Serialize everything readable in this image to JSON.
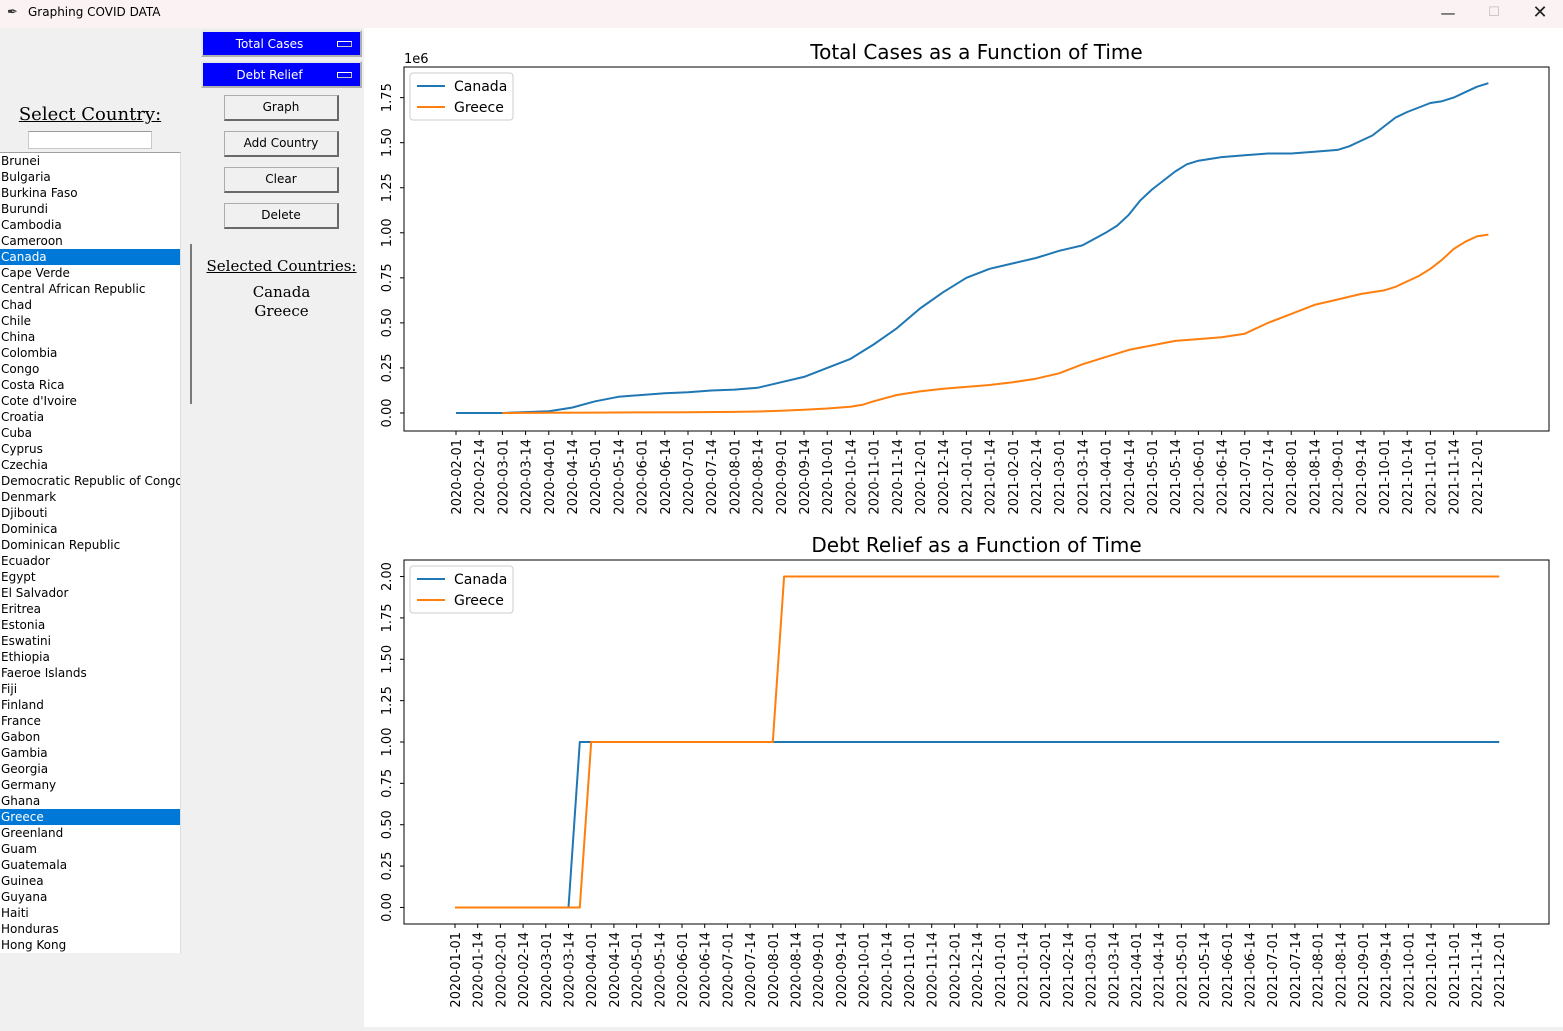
{
  "window": {
    "title": "Graphing COVID DATA",
    "min_glyph": "—",
    "max_glyph": "☐",
    "close_glyph": "✕"
  },
  "controls": {
    "metric1": "Total Cases",
    "metric2": "Debt Relief",
    "graph_label": "Graph",
    "add_label": "Add Country",
    "clear_label": "Clear",
    "delete_label": "Delete"
  },
  "left": {
    "select_label": "Select Country:",
    "search_value": "",
    "countries": [
      "Brunei",
      "Bulgaria",
      "Burkina Faso",
      "Burundi",
      "Cambodia",
      "Cameroon",
      "Canada",
      "Cape Verde",
      "Central African Republic",
      "Chad",
      "Chile",
      "China",
      "Colombia",
      "Congo",
      "Costa Rica",
      "Cote d'Ivoire",
      "Croatia",
      "Cuba",
      "Cyprus",
      "Czechia",
      "Democratic Republic of Congo",
      "Denmark",
      "Djibouti",
      "Dominica",
      "Dominican Republic",
      "Ecuador",
      "Egypt",
      "El Salvador",
      "Eritrea",
      "Estonia",
      "Eswatini",
      "Ethiopia",
      "Faeroe Islands",
      "Fiji",
      "Finland",
      "France",
      "Gabon",
      "Gambia",
      "Georgia",
      "Germany",
      "Ghana",
      "Greece",
      "Greenland",
      "Guam",
      "Guatemala",
      "Guinea",
      "Guyana",
      "Haiti",
      "Honduras",
      "Hong Kong"
    ],
    "selected_countries": [
      "Canada",
      "Greece"
    ],
    "selected_label": "Selected Countries:",
    "selected": [
      "Canada",
      "Greece"
    ]
  },
  "colors": {
    "canada": "#1f77b4",
    "greece": "#ff7f0e",
    "accent": "#0000ff",
    "selection": "#0078d7"
  },
  "chart_data": [
    {
      "type": "line",
      "title": "Total Cases as a Function of Time",
      "offset_label": "1e6",
      "ylim": [
        -0.1,
        1.92
      ],
      "yticks": [
        "0.00",
        "0.25",
        "0.50",
        "0.75",
        "1.00",
        "1.25",
        "1.50",
        "1.75"
      ],
      "xticks": [
        "2020-02-01",
        "2020-02-14",
        "2020-03-01",
        "2020-03-14",
        "2020-04-01",
        "2020-04-14",
        "2020-05-01",
        "2020-05-14",
        "2020-06-01",
        "2020-06-14",
        "2020-07-01",
        "2020-07-14",
        "2020-08-01",
        "2020-08-14",
        "2020-09-01",
        "2020-09-14",
        "2020-10-01",
        "2020-10-14",
        "2020-11-01",
        "2020-11-14",
        "2020-12-01",
        "2020-12-14",
        "2021-01-01",
        "2021-01-14",
        "2021-02-01",
        "2021-02-14",
        "2021-03-01",
        "2021-03-14",
        "2021-04-01",
        "2021-04-14",
        "2021-05-01",
        "2021-05-14",
        "2021-06-01",
        "2021-06-14",
        "2021-07-01",
        "2021-07-14",
        "2021-08-01",
        "2021-08-14",
        "2021-09-01",
        "2021-09-14",
        "2021-10-01",
        "2021-10-14",
        "2021-11-01",
        "2021-11-14",
        "2021-12-01"
      ],
      "legend": "upper left",
      "series": [
        {
          "name": "Canada",
          "x": [
            0,
            2,
            4,
            5,
            6,
            7,
            8,
            9,
            10,
            11,
            12,
            13,
            14,
            15,
            16,
            17,
            18,
            19,
            20,
            21,
            22,
            23,
            24,
            25,
            25.5,
            26,
            27,
            28,
            28.5,
            29,
            29.5,
            30,
            30.5,
            31,
            31.5,
            32,
            33,
            34,
            35,
            36,
            37,
            38,
            38.5,
            39,
            39.5,
            40,
            40.5,
            41,
            42,
            42.5,
            43,
            43.5,
            44,
            44.5
          ],
          "y": [
            0,
            0,
            0.01,
            0.03,
            0.065,
            0.09,
            0.1,
            0.11,
            0.115,
            0.125,
            0.13,
            0.14,
            0.17,
            0.2,
            0.25,
            0.3,
            0.38,
            0.47,
            0.58,
            0.67,
            0.75,
            0.8,
            0.83,
            0.86,
            0.88,
            0.9,
            0.93,
            1.0,
            1.04,
            1.1,
            1.18,
            1.24,
            1.29,
            1.34,
            1.38,
            1.4,
            1.42,
            1.43,
            1.44,
            1.44,
            1.45,
            1.46,
            1.48,
            1.51,
            1.54,
            1.59,
            1.64,
            1.67,
            1.72,
            1.73,
            1.75,
            1.78,
            1.81,
            1.83
          ]
        },
        {
          "name": "Greece",
          "x": [
            2,
            4,
            6,
            8,
            10,
            12,
            13,
            14,
            15,
            16,
            17,
            17.5,
            18,
            19,
            20,
            21,
            22,
            23,
            24,
            25,
            26,
            27,
            28,
            29,
            30,
            31,
            32,
            33,
            34,
            35,
            36,
            37,
            38,
            39,
            40,
            40.5,
            41,
            41.5,
            42,
            42.5,
            43,
            43.5,
            44,
            44.5
          ],
          "y": [
            0,
            0.001,
            0.002,
            0.003,
            0.004,
            0.006,
            0.008,
            0.012,
            0.018,
            0.025,
            0.035,
            0.045,
            0.065,
            0.1,
            0.12,
            0.135,
            0.145,
            0.155,
            0.17,
            0.19,
            0.22,
            0.27,
            0.31,
            0.35,
            0.375,
            0.4,
            0.41,
            0.42,
            0.44,
            0.5,
            0.55,
            0.6,
            0.63,
            0.66,
            0.68,
            0.7,
            0.73,
            0.76,
            0.8,
            0.85,
            0.91,
            0.95,
            0.98,
            0.99
          ]
        }
      ]
    },
    {
      "type": "line",
      "title": "Debt Relief as a Function of Time",
      "ylim": [
        -0.1,
        2.1
      ],
      "yticks": [
        "0.00",
        "0.25",
        "0.50",
        "0.75",
        "1.00",
        "1.25",
        "1.50",
        "1.75",
        "2.00"
      ],
      "xticks": [
        "2020-01-01",
        "2020-01-14",
        "2020-02-01",
        "2020-02-14",
        "2020-03-01",
        "2020-03-14",
        "2020-04-01",
        "2020-04-14",
        "2020-05-01",
        "2020-05-14",
        "2020-06-01",
        "2020-06-14",
        "2020-07-01",
        "2020-07-14",
        "2020-08-01",
        "2020-08-14",
        "2020-09-01",
        "2020-09-14",
        "2020-10-01",
        "2020-10-14",
        "2020-11-01",
        "2020-11-14",
        "2020-12-01",
        "2020-12-14",
        "2021-01-01",
        "2021-01-14",
        "2021-02-01",
        "2021-02-14",
        "2021-03-01",
        "2021-03-14",
        "2021-04-01",
        "2021-04-14",
        "2021-05-01",
        "2021-05-14",
        "2021-06-01",
        "2021-06-14",
        "2021-07-01",
        "2021-07-14",
        "2021-08-01",
        "2021-08-14",
        "2021-09-01",
        "2021-09-14",
        "2021-10-01",
        "2021-10-14",
        "2021-11-01",
        "2021-11-14",
        "2021-12-01"
      ],
      "legend": "upper left",
      "series": [
        {
          "name": "Canada",
          "x": [
            0,
            5,
            5.5,
            46
          ],
          "y": [
            0,
            0,
            1,
            1
          ]
        },
        {
          "name": "Greece",
          "x": [
            0,
            5.5,
            6,
            14,
            14.5,
            46
          ],
          "y": [
            0,
            0,
            1,
            1,
            2,
            2
          ]
        }
      ]
    }
  ]
}
